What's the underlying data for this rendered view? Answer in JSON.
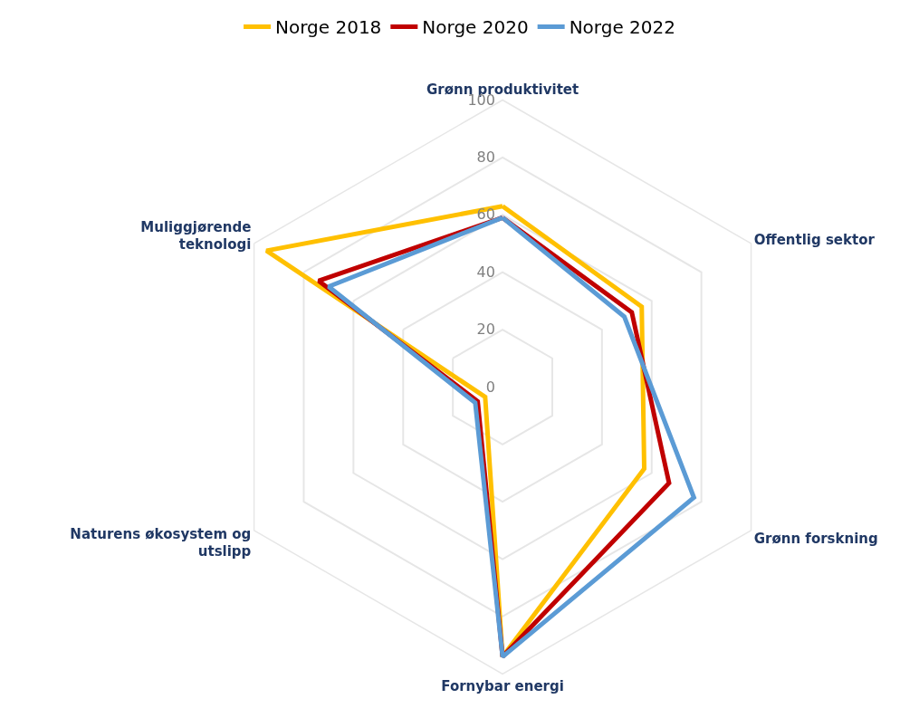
{
  "chart_data": {
    "type": "radar",
    "categories": [
      "Grønn produktivitet",
      "Offentlig sektor",
      "Grønn forskning",
      "Fornybar energi",
      "Naturens økosystem og utslipp",
      "Muliggjørende teknologi"
    ],
    "series": [
      {
        "name": "Norge 2018",
        "color": "#ffc000",
        "values": [
          63,
          56,
          57,
          94,
          7,
          95
        ]
      },
      {
        "name": "Norge 2020",
        "color": "#c00000",
        "values": [
          59,
          52,
          67,
          94,
          10,
          74
        ]
      },
      {
        "name": "Norge 2022",
        "color": "#5b9bd5",
        "values": [
          59,
          49,
          77,
          94,
          11,
          70
        ]
      }
    ],
    "ylim": [
      0,
      100
    ],
    "yticks": [
      0,
      20,
      40,
      60,
      80,
      100
    ],
    "grid": true,
    "legend": "top",
    "marker": "none",
    "line_style": "solid"
  }
}
